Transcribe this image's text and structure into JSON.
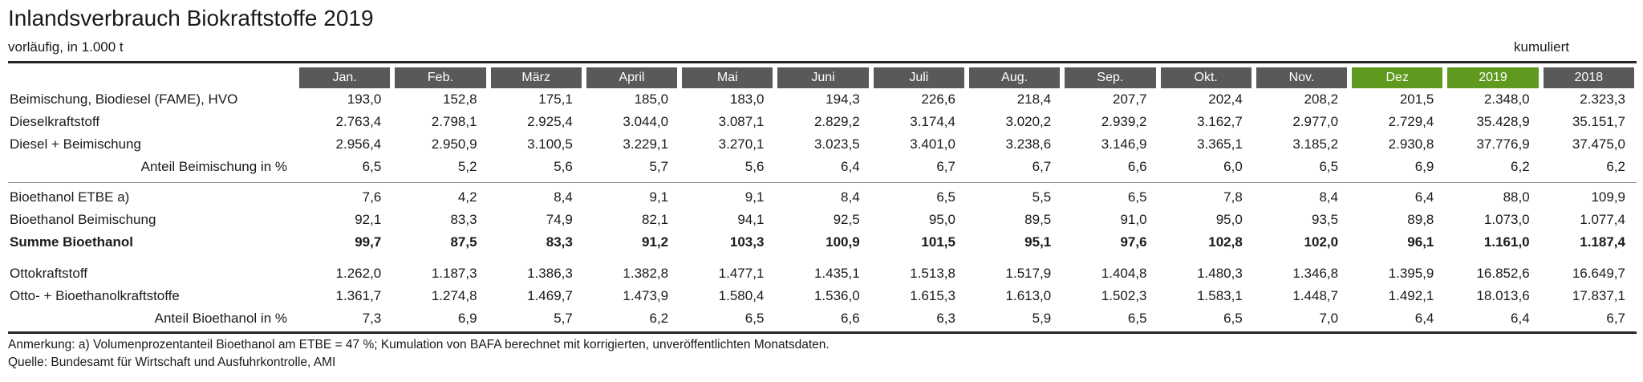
{
  "page": {
    "title": "Inlandsverbrauch Biokraftstoffe 2019",
    "subtitle_left": "vorläufig, in 1.000 t",
    "subtitle_right": "kumuliert"
  },
  "colors": {
    "header_gray": "#595959",
    "accent_green": "#5f9a1e",
    "text": "#1a1a1a",
    "rule_dark": "#262626",
    "divider_gray": "#8c8c8c"
  },
  "table": {
    "columns": [
      {
        "label": "Jan.",
        "highlight": false
      },
      {
        "label": "Feb.",
        "highlight": false
      },
      {
        "label": "März",
        "highlight": false
      },
      {
        "label": "April",
        "highlight": false
      },
      {
        "label": "Mai",
        "highlight": false
      },
      {
        "label": "Juni",
        "highlight": false
      },
      {
        "label": "Juli",
        "highlight": false
      },
      {
        "label": "Aug.",
        "highlight": false
      },
      {
        "label": "Sep.",
        "highlight": false
      },
      {
        "label": "Okt.",
        "highlight": false
      },
      {
        "label": "Nov.",
        "highlight": false
      },
      {
        "label": "Dez",
        "highlight": true
      },
      {
        "label": "2019",
        "highlight": true
      },
      {
        "label": "2018",
        "highlight": false
      }
    ],
    "rows": [
      {
        "label": "Beimischung, Biodiesel (FAME), HVO",
        "bold": false,
        "label_align": "left",
        "separator_above": null,
        "values": [
          "193,0",
          "152,8",
          "175,1",
          "185,0",
          "183,0",
          "194,3",
          "226,6",
          "218,4",
          "207,7",
          "202,4",
          "208,2",
          "201,5",
          "2.348,0",
          "2.323,3"
        ]
      },
      {
        "label": "Dieselkraftstoff",
        "bold": false,
        "label_align": "left",
        "separator_above": null,
        "values": [
          "2.763,4",
          "2.798,1",
          "2.925,4",
          "3.044,0",
          "3.087,1",
          "2.829,2",
          "3.174,4",
          "3.020,2",
          "2.939,2",
          "3.162,7",
          "2.977,0",
          "2.729,4",
          "35.428,9",
          "35.151,7"
        ]
      },
      {
        "label": "Diesel + Beimischung",
        "bold": false,
        "label_align": "left",
        "separator_above": null,
        "values": [
          "2.956,4",
          "2.950,9",
          "3.100,5",
          "3.229,1",
          "3.270,1",
          "3.023,5",
          "3.401,0",
          "3.238,6",
          "3.146,9",
          "3.365,1",
          "3.185,2",
          "2.930,8",
          "37.776,9",
          "37.475,0"
        ]
      },
      {
        "label": "Anteil Beimischung in %",
        "bold": false,
        "label_align": "right",
        "separator_above": null,
        "values": [
          "6,5",
          "5,2",
          "5,6",
          "5,7",
          "5,6",
          "6,4",
          "6,7",
          "6,7",
          "6,6",
          "6,0",
          "6,5",
          "6,9",
          "6,2",
          "6,2"
        ]
      },
      {
        "label": "Bioethanol ETBE a)",
        "bold": false,
        "label_align": "left",
        "separator_above": "line",
        "values": [
          "7,6",
          "4,2",
          "8,4",
          "9,1",
          "9,1",
          "8,4",
          "6,5",
          "5,5",
          "6,5",
          "7,8",
          "8,4",
          "6,4",
          "88,0",
          "109,9"
        ]
      },
      {
        "label": "Bioethanol Beimischung",
        "bold": false,
        "label_align": "left",
        "separator_above": null,
        "values": [
          "92,1",
          "83,3",
          "74,9",
          "82,1",
          "94,1",
          "92,5",
          "95,0",
          "89,5",
          "91,0",
          "95,0",
          "93,5",
          "89,8",
          "1.073,0",
          "1.077,4"
        ]
      },
      {
        "label": "Summe Bioethanol",
        "bold": true,
        "label_align": "left",
        "separator_above": null,
        "values": [
          "99,7",
          "87,5",
          "83,3",
          "91,2",
          "103,3",
          "100,9",
          "101,5",
          "95,1",
          "97,6",
          "102,8",
          "102,0",
          "96,1",
          "1.161,0",
          "1.187,4"
        ]
      },
      {
        "label": "Ottokraftstoff",
        "bold": false,
        "label_align": "left",
        "separator_above": "space",
        "values": [
          "1.262,0",
          "1.187,3",
          "1.386,3",
          "1.382,8",
          "1.477,1",
          "1.435,1",
          "1.513,8",
          "1.517,9",
          "1.404,8",
          "1.480,3",
          "1.346,8",
          "1.395,9",
          "16.852,6",
          "16.649,7"
        ]
      },
      {
        "label": "Otto- + Bioethanolkraftstoffe",
        "bold": false,
        "label_align": "left",
        "separator_above": null,
        "values": [
          "1.361,7",
          "1.274,8",
          "1.469,7",
          "1.473,9",
          "1.580,4",
          "1.536,0",
          "1.615,3",
          "1.613,0",
          "1.502,3",
          "1.583,1",
          "1.448,7",
          "1.492,1",
          "18.013,6",
          "17.837,1"
        ]
      },
      {
        "label": "Anteil Bioethanol in %",
        "bold": false,
        "label_align": "right",
        "separator_above": null,
        "values": [
          "7,3",
          "6,9",
          "5,7",
          "6,2",
          "6,5",
          "6,6",
          "6,3",
          "5,9",
          "6,5",
          "6,5",
          "7,0",
          "6,4",
          "6,4",
          "6,7"
        ]
      }
    ]
  },
  "footer": {
    "note": "Anmerkung: a) Volumenprozentanteil Bioethanol am ETBE = 47 %; Kumulation von BAFA berechnet mit korrigierten, unveröffentlichten Monatsdaten.",
    "source": "Quelle: Bundesamt für Wirtschaft und Ausfuhrkontrolle, AMI"
  },
  "chart_data": {
    "type": "table",
    "title": "Inlandsverbrauch Biokraftstoffe 2019",
    "subtitle": "vorläufig, in 1.000 t",
    "cumulative_note": "kumuliert (Spalten 2019, 2018)",
    "categories": [
      "Jan.",
      "Feb.",
      "März",
      "April",
      "Mai",
      "Juni",
      "Juli",
      "Aug.",
      "Sep.",
      "Okt.",
      "Nov.",
      "Dez",
      "2019",
      "2018"
    ],
    "series": [
      {
        "name": "Beimischung, Biodiesel (FAME), HVO",
        "values": [
          193.0,
          152.8,
          175.1,
          185.0,
          183.0,
          194.3,
          226.6,
          218.4,
          207.7,
          202.4,
          208.2,
          201.5,
          2348.0,
          2323.3
        ]
      },
      {
        "name": "Dieselkraftstoff",
        "values": [
          2763.4,
          2798.1,
          2925.4,
          3044.0,
          3087.1,
          2829.2,
          3174.4,
          3020.2,
          2939.2,
          3162.7,
          2977.0,
          2729.4,
          35428.9,
          35151.7
        ]
      },
      {
        "name": "Diesel + Beimischung",
        "values": [
          2956.4,
          2950.9,
          3100.5,
          3229.1,
          3270.1,
          3023.5,
          3401.0,
          3238.6,
          3146.9,
          3365.1,
          3185.2,
          2930.8,
          37776.9,
          37475.0
        ]
      },
      {
        "name": "Anteil Beimischung in %",
        "values": [
          6.5,
          5.2,
          5.6,
          5.7,
          5.6,
          6.4,
          6.7,
          6.7,
          6.6,
          6.0,
          6.5,
          6.9,
          6.2,
          6.2
        ]
      },
      {
        "name": "Bioethanol ETBE a)",
        "values": [
          7.6,
          4.2,
          8.4,
          9.1,
          9.1,
          8.4,
          6.5,
          5.5,
          6.5,
          7.8,
          8.4,
          6.4,
          88.0,
          109.9
        ]
      },
      {
        "name": "Bioethanol Beimischung",
        "values": [
          92.1,
          83.3,
          74.9,
          82.1,
          94.1,
          92.5,
          95.0,
          89.5,
          91.0,
          95.0,
          93.5,
          89.8,
          1073.0,
          1077.4
        ]
      },
      {
        "name": "Summe Bioethanol",
        "values": [
          99.7,
          87.5,
          83.3,
          91.2,
          103.3,
          100.9,
          101.5,
          95.1,
          97.6,
          102.8,
          102.0,
          96.1,
          1161.0,
          1187.4
        ]
      },
      {
        "name": "Ottokraftstoff",
        "values": [
          1262.0,
          1187.3,
          1386.3,
          1382.8,
          1477.1,
          1435.1,
          1513.8,
          1517.9,
          1404.8,
          1480.3,
          1346.8,
          1395.9,
          16852.6,
          16649.7
        ]
      },
      {
        "name": "Otto- + Bioethanolkraftstoffe",
        "values": [
          1361.7,
          1274.8,
          1469.7,
          1473.9,
          1580.4,
          1536.0,
          1615.3,
          1613.0,
          1502.3,
          1583.1,
          1448.7,
          1492.1,
          18013.6,
          17837.1
        ]
      },
      {
        "name": "Anteil Bioethanol in %",
        "values": [
          7.3,
          6.9,
          5.7,
          6.2,
          6.5,
          6.6,
          6.3,
          5.9,
          6.5,
          6.5,
          7.0,
          6.4,
          6.4,
          6.7
        ]
      }
    ],
    "footnote": "a) Volumenprozentanteil Bioethanol am ETBE = 47 %; Kumulation von BAFA berechnet mit korrigierten, unveröffentlichten Monatsdaten.",
    "source": "Bundesamt für Wirtschaft und Ausfuhrkontrolle, AMI"
  }
}
